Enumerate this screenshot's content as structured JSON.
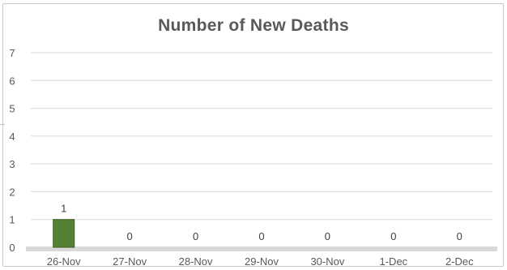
{
  "chart_data": {
    "type": "bar",
    "title": "Number of New Deaths",
    "categories": [
      "26-Nov",
      "27-Nov",
      "28-Nov",
      "29-Nov",
      "30-Nov",
      "1-Dec",
      "2-Dec"
    ],
    "values": [
      1,
      0,
      0,
      0,
      0,
      0,
      0
    ],
    "data_labels": [
      "1",
      "0",
      "0",
      "0",
      "0",
      "0",
      "0"
    ],
    "ylim": [
      0,
      7
    ],
    "yticks": [
      "0",
      "1",
      "2",
      "3",
      "4",
      "5",
      "6",
      "7"
    ],
    "xlabel": "",
    "ylabel": "",
    "grid": true,
    "legend": "none",
    "bar_color": "#548235",
    "bar_edge_color": "#3b5e24",
    "gridline_color": "#d9d9d9",
    "baseline_color": "#d9d9d9",
    "text_color": "#595959"
  }
}
